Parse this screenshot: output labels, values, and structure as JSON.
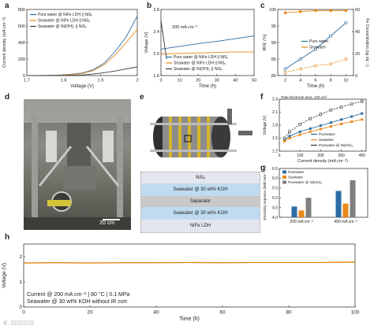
{
  "panels": {
    "a": "a",
    "b": "b",
    "c": "c",
    "d": "d",
    "e": "e",
    "f": "f",
    "g": "g",
    "h": "h"
  },
  "photo_d": {
    "scale_bar_label": "20 cm"
  },
  "stack_e": {
    "layers": [
      "NiSₓ",
      "Seawater @ 30 wt% KOH",
      "Separator",
      "Seawater @ 30 wt% KOH",
      "NiFe LDH"
    ]
  },
  "chart_data": [
    {
      "id": "a",
      "type": "line",
      "xlabel": "Voltage (V)",
      "ylabel": "Current density (mA cm⁻²)",
      "xlim": [
        1.7,
        2.0
      ],
      "ylim": [
        0,
        800
      ],
      "xticks": [
        1.7,
        1.8,
        1.9,
        2.0
      ],
      "yticks": [
        0,
        200,
        400,
        600,
        800
      ],
      "legend": "top-left",
      "series": [
        {
          "name": "Pure water @ NiFe LDH || NiSₓ",
          "color": "#2b6ca3",
          "x": [
            1.7,
            1.75,
            1.8,
            1.85,
            1.88,
            1.91,
            1.94,
            1.97,
            2.0
          ],
          "y": [
            0,
            2,
            8,
            30,
            70,
            150,
            290,
            470,
            720
          ]
        },
        {
          "name": "Seawater @ NiFe LDH || NiSₓ",
          "color": "#e8891a",
          "x": [
            1.7,
            1.75,
            1.8,
            1.85,
            1.88,
            1.91,
            1.94,
            1.97,
            2.0
          ],
          "y": [
            0,
            1,
            6,
            25,
            60,
            130,
            250,
            400,
            560
          ]
        },
        {
          "name": "Seawater @ Ni(OH)₂ || NiSₓ",
          "color": "#3a3a3a",
          "x": [
            1.7,
            1.75,
            1.8,
            1.85,
            1.88,
            1.91,
            1.94,
            1.97,
            2.0
          ],
          "y": [
            0,
            0,
            2,
            8,
            18,
            35,
            55,
            80,
            105
          ]
        }
      ]
    },
    {
      "id": "b",
      "type": "line",
      "xlabel": "Time (h)",
      "ylabel": "Voltage (V)",
      "xlim": [
        0,
        50
      ],
      "ylim": [
        1.6,
        2.8
      ],
      "xticks": [
        0,
        10,
        20,
        30,
        40,
        50
      ],
      "yticks": [
        1.6,
        2.0,
        2.4,
        2.8
      ],
      "annotation": "200 mA cm⁻²",
      "legend": "bottom",
      "series": [
        {
          "name": "Pure water @ NiFe LDH || NiSₓ",
          "color": "#2b6ca3",
          "x": [
            0,
            10,
            20,
            30,
            40,
            50
          ],
          "y": [
            2.08,
            2.13,
            2.18,
            2.22,
            2.27,
            2.32
          ]
        },
        {
          "name": "Seawater @ NiFe LDH || NiSₓ",
          "color": "#e8891a",
          "x": [
            0,
            10,
            20,
            30,
            40,
            50
          ],
          "y": [
            1.99,
            2.0,
            2.01,
            2.02,
            2.03,
            2.03
          ]
        },
        {
          "name": "Seawater @ Ni(OH)₂ || NiSₓ",
          "color": "#3a3a3a",
          "x": [
            0,
            3
          ],
          "y": [
            2.6,
            1.9
          ]
        }
      ]
    },
    {
      "id": "c",
      "type": "line",
      "xlabel": "Time (h)",
      "ylabel": "RFE (%)",
      "ylabel_right": "Fe Concentration (ng mL⁻¹)",
      "xlim": [
        1,
        11
      ],
      "ylim": [
        80,
        100
      ],
      "ylim_right": [
        0,
        60
      ],
      "xticks": [
        2,
        4,
        6,
        8,
        10
      ],
      "yticks": [
        80,
        85,
        90,
        95,
        100
      ],
      "yticks_right": [
        0,
        20,
        40,
        60
      ],
      "legend": "center",
      "series": [
        {
          "name": "Pure water",
          "color": "#2b6ca3",
          "x": [
            2,
            4,
            6,
            8,
            10
          ],
          "y": [
            82,
            85,
            88,
            92,
            96
          ]
        },
        {
          "name": "Seawater",
          "color": "#e8891a",
          "x": [
            2,
            4,
            6,
            8,
            10
          ],
          "y": [
            81,
            82,
            83,
            83.5,
            85
          ]
        },
        {
          "name": "",
          "color": "#e8891a",
          "axis": "right",
          "x": [
            2,
            4,
            6,
            8,
            10
          ],
          "y": [
            57,
            58,
            59,
            59,
            59
          ]
        }
      ]
    },
    {
      "id": "f",
      "type": "line",
      "title": "Total electrode area: 120 cm²",
      "xlabel": "Current density (mA cm⁻²)",
      "ylabel": "Voltage (V)",
      "xlim": [
        0,
        420
      ],
      "ylim": [
        1.2,
        2.4
      ],
      "xticks": [
        0,
        100,
        200,
        300,
        400
      ],
      "yticks": [
        1.2,
        1.5,
        1.8,
        2.1,
        2.4
      ],
      "legend": "bottom-right",
      "series": [
        {
          "name": "Purewater",
          "color": "#2b6ca3",
          "x": [
            25,
            50,
            100,
            150,
            200,
            250,
            300,
            350,
            400
          ],
          "y": [
            1.46,
            1.55,
            1.65,
            1.72,
            1.79,
            1.86,
            1.93,
            2.0,
            2.07
          ]
        },
        {
          "name": "Seawater",
          "color": "#e8891a",
          "x": [
            25,
            50,
            100,
            150,
            200,
            250,
            300,
            350,
            400
          ],
          "y": [
            1.43,
            1.5,
            1.58,
            1.65,
            1.71,
            1.77,
            1.83,
            1.88,
            1.93
          ]
        },
        {
          "name": "Purewater @ Ni(OH)₂",
          "color": "#333333",
          "x": [
            25,
            50,
            100,
            150,
            200,
            250,
            300,
            350,
            400
          ],
          "y": [
            1.5,
            1.65,
            1.82,
            1.95,
            2.05,
            2.15,
            2.22,
            2.29,
            2.35
          ]
        }
      ]
    },
    {
      "id": "g",
      "type": "bar",
      "xlabel": "",
      "ylabel": "Electricity expense (kWh Nm⁻³ H₂)",
      "ylim": [
        4.0,
        6.5
      ],
      "yticks": [
        4.0,
        4.5,
        5.0,
        5.5,
        6.0,
        6.5
      ],
      "categories": [
        "200 mA cm⁻²",
        "400 mA cm⁻²"
      ],
      "legend": "top-left",
      "series": [
        {
          "name": "Purewater",
          "color": "#2b6ca3",
          "values": [
            4.55,
            5.35
          ]
        },
        {
          "name": "Seawater",
          "color": "#e8891a",
          "values": [
            4.35,
            4.7
          ]
        },
        {
          "name": "Purewater @ Ni(OH)₂",
          "color": "#7f7f7f",
          "values": [
            5.0,
            5.9
          ]
        }
      ]
    },
    {
      "id": "h",
      "type": "line",
      "xlabel": "Time (h)",
      "ylabel": "Voltage (V)",
      "xlim": [
        0,
        100
      ],
      "ylim": [
        0,
        2.5
      ],
      "xticks": [
        0,
        20,
        40,
        60,
        80,
        100
      ],
      "yticks": [
        0,
        1,
        2
      ],
      "annotations": [
        "Current @ 200 mA cm⁻² | 80 °C | 0.1 MPa",
        "Seawater @ 30 wt% KOH without iR corr."
      ],
      "series": [
        {
          "name": "",
          "color": "#e8891a",
          "x": [
            0,
            10,
            20,
            30,
            40,
            50,
            60,
            70,
            80,
            90,
            100
          ],
          "y": [
            1.75,
            1.76,
            1.75,
            1.76,
            1.76,
            1.77,
            1.76,
            1.77,
            1.77,
            1.77,
            1.78
          ]
        }
      ]
    }
  ]
}
